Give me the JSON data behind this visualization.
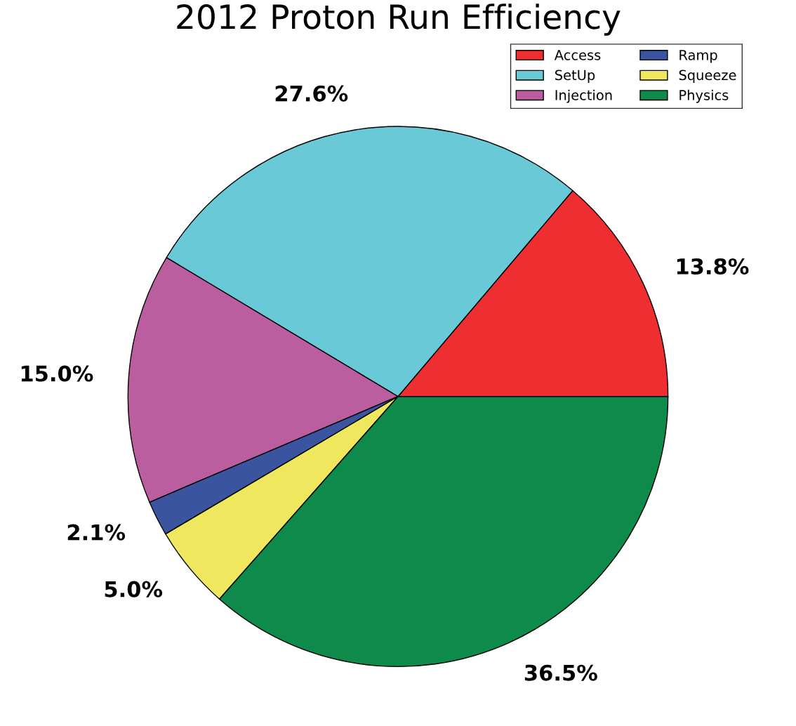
{
  "chart_data": {
    "type": "pie",
    "title": "2012 Proton Run Efficiency",
    "categories": [
      "Access",
      "SetUp",
      "Injection",
      "Ramp",
      "Squeeze",
      "Physics"
    ],
    "values": [
      13.8,
      27.6,
      15.0,
      2.1,
      5.0,
      36.5
    ],
    "colors": [
      "#ee2e31",
      "#6ac9d6",
      "#bb5e9f",
      "#3a54a0",
      "#efe85e",
      "#0e8a4a"
    ],
    "value_labels": [
      "13.8%",
      "27.6%",
      "15.0%",
      "2.1%",
      "5.0%",
      "36.5%"
    ],
    "legend": "top right"
  }
}
